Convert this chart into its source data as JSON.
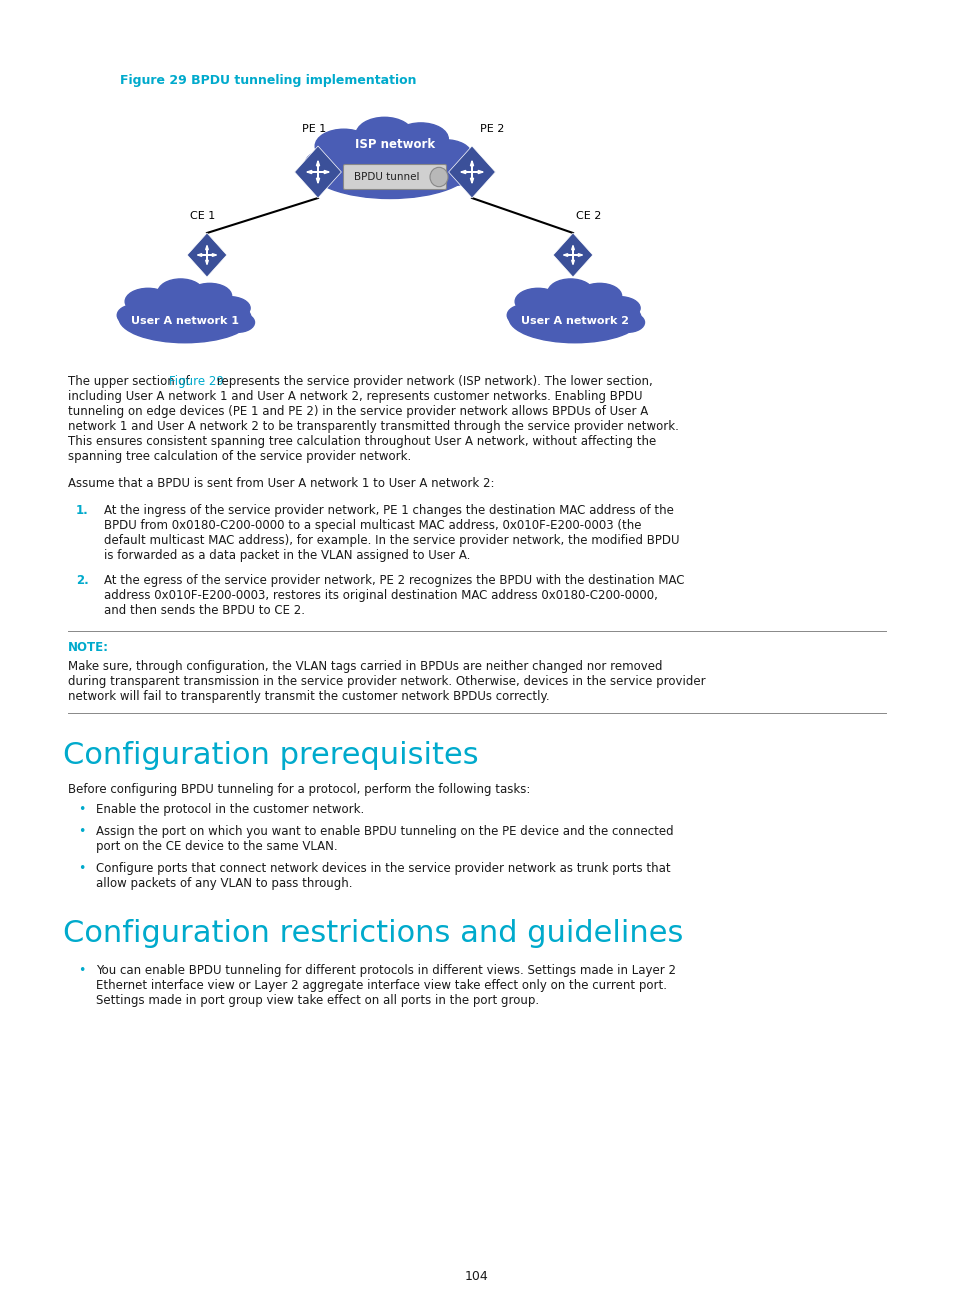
{
  "figure_label": "Figure 29 BPDU tunneling implementation",
  "figure_label_color": "#00AACC",
  "bg_color": "#ffffff",
  "cyan_color": "#00AACC",
  "body_text_color": "#1a1a1a",
  "blue_switch": "#3B5099",
  "blue_cloud_isp": "#4A5DB5",
  "blue_cloud_user": "#4A5DB5",
  "isp_cloud_text": "ISP network",
  "bpdu_tunnel_text": "BPDU tunnel",
  "pe1_label": "PE 1",
  "pe2_label": "PE 2",
  "ce1_label": "CE 1",
  "ce2_label": "CE 2",
  "net1_label": "User A network 1",
  "net2_label": "User A network 2",
  "page_number": "104",
  "para1_prefix": "The upper section of ",
  "para1_cyan": "Figure 29",
  "para1_rest_lines": [
    " represents the service provider network (ISP network). The lower section,",
    "including User A network 1 and User A network 2, represents customer networks. Enabling BPDU",
    "tunneling on edge devices (PE 1 and PE 2) in the service provider network allows BPDUs of User A",
    "network 1 and User A network 2 to be transparently transmitted through the service provider network.",
    "This ensures consistent spanning tree calculation throughout User A network, without affecting the",
    "spanning tree calculation of the service provider network."
  ],
  "para2": "Assume that a BPDU is sent from User A network 1 to User A network 2:",
  "item1_num": "1.",
  "item1_lines": [
    "At the ingress of the service provider network, PE 1 changes the destination MAC address of the",
    "BPDU from 0x0180-C200-0000 to a special multicast MAC address, 0x010F-E200-0003 (the",
    "default multicast MAC address), for example. In the service provider network, the modified BPDU",
    "is forwarded as a data packet in the VLAN assigned to User A."
  ],
  "item2_num": "2.",
  "item2_lines": [
    "At the egress of the service provider network, PE 2 recognizes the BPDU with the destination MAC",
    "address 0x010F-E200-0003, restores its original destination MAC address 0x0180-C200-0000,",
    "and then sends the BPDU to CE 2."
  ],
  "note_label": "NOTE:",
  "note_lines": [
    "Make sure, through configuration, the VLAN tags carried in BPDUs are neither changed nor removed",
    "during transparent transmission in the service provider network. Otherwise, devices in the service provider",
    "network will fail to transparently transmit the customer network BPDUs correctly."
  ],
  "section1_title": "Configuration prerequisites",
  "section1_intro": "Before configuring BPDU tunneling for a protocol, perform the following tasks:",
  "section1_bullets": [
    [
      "Enable the protocol in the customer network."
    ],
    [
      "Assign the port on which you want to enable BPDU tunneling on the PE device and the connected",
      "port on the CE device to the same VLAN."
    ],
    [
      "Configure ports that connect network devices in the service provider network as trunk ports that",
      "allow packets of any VLAN to pass through."
    ]
  ],
  "section2_title": "Configuration restrictions and guidelines",
  "section2_bullets": [
    [
      "You can enable BPDU tunneling for different protocols in different views. Settings made in Layer 2",
      "Ethernet interface view or Layer 2 aggregate interface view take effect only on the current port.",
      "Settings made in port group view take effect on all ports in the port group."
    ]
  ]
}
